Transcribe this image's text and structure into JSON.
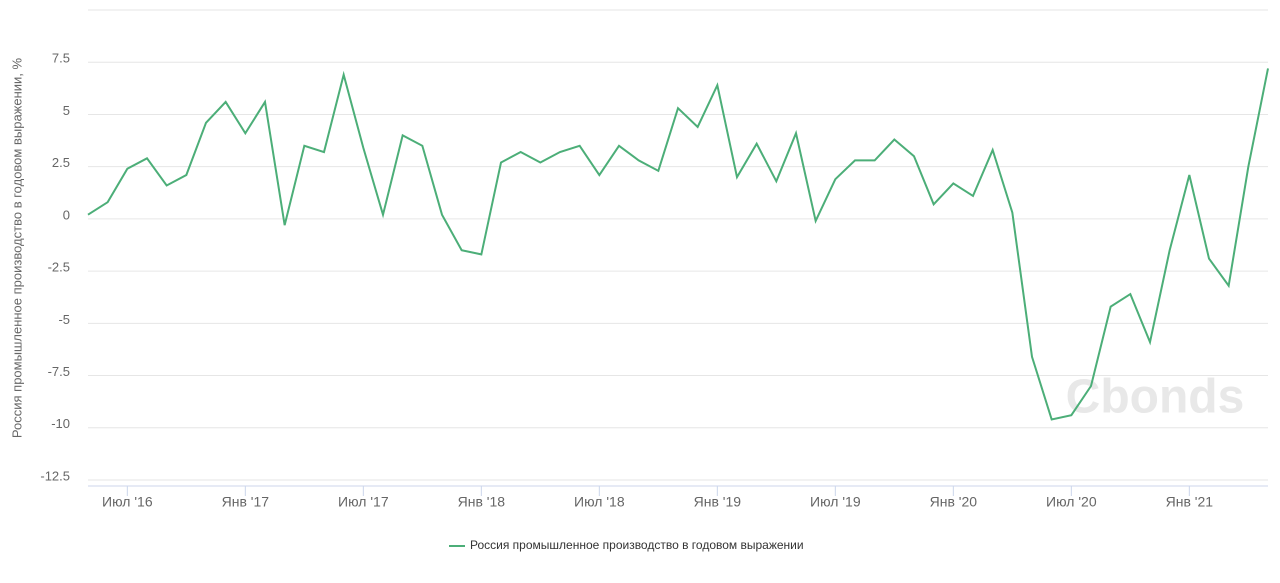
{
  "chart_data": {
    "type": "line",
    "y_label": "Россия промышленное производство в годовом выражении, %",
    "categories": [
      null,
      null,
      "Июл '16",
      null,
      null,
      null,
      null,
      null,
      "Янв '17",
      null,
      null,
      null,
      null,
      null,
      "Июл '17",
      null,
      null,
      null,
      null,
      null,
      "Янв '18",
      null,
      null,
      null,
      null,
      null,
      "Июл '18",
      null,
      null,
      null,
      null,
      null,
      "Янв '19",
      null,
      null,
      null,
      null,
      null,
      "Июл '19",
      null,
      null,
      null,
      null,
      null,
      "Янв '20",
      null,
      null,
      null,
      null,
      null,
      "Июл '20",
      null,
      null,
      null,
      null,
      null,
      "Янв '21",
      null,
      null,
      null,
      null
    ],
    "series": [
      {
        "name": "Россия промышленное производство в годовом выражении",
        "color": "#4cae78",
        "values": [
          0.2,
          0.8,
          2.4,
          2.9,
          1.6,
          2.1,
          4.6,
          5.6,
          4.1,
          5.6,
          -0.3,
          3.5,
          3.2,
          6.9,
          3.4,
          0.2,
          4.0,
          3.5,
          0.2,
          -1.5,
          -1.7,
          2.7,
          3.2,
          2.7,
          3.2,
          3.5,
          2.1,
          3.5,
          2.8,
          2.3,
          5.3,
          4.4,
          6.4,
          2.0,
          3.6,
          1.8,
          4.1,
          -0.1,
          1.9,
          2.8,
          2.8,
          3.8,
          3.0,
          0.7,
          1.7,
          1.1,
          3.3,
          0.3,
          -6.6,
          -9.6,
          -9.4,
          -8.0,
          -4.2,
          -3.6,
          -5.9,
          -1.5,
          2.1,
          -1.9,
          -3.2,
          2.5,
          7.2
        ]
      }
    ],
    "ylim": [
      -12.5,
      10
    ],
    "yticks": [
      -12.5,
      -10,
      -7.5,
      -5,
      -2.5,
      0,
      2.5,
      5,
      7.5
    ],
    "grid": true,
    "watermark": "Cbonds"
  }
}
